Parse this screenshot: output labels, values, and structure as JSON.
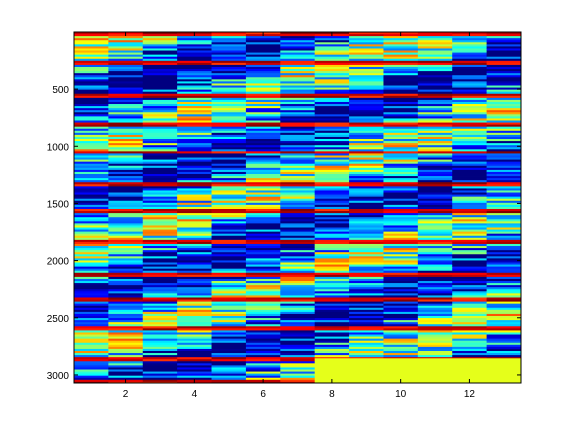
{
  "chart_data": {
    "type": "heatmap",
    "title": "",
    "xlabel": "",
    "ylabel": "",
    "colormap": "jet",
    "columns": 13,
    "rows": 3070,
    "x_range": [
      0.5,
      13.5
    ],
    "y_range": [
      0.5,
      3070.5
    ],
    "y_direction": "reversed",
    "x_ticks": [
      2,
      4,
      6,
      8,
      10,
      12
    ],
    "y_ticks": [
      500,
      1000,
      1500,
      2000,
      2500,
      3000
    ],
    "x_tick_labels": [
      "2",
      "4",
      "6",
      "8",
      "10",
      "12"
    ],
    "y_tick_labels": [
      "500",
      "1000",
      "1500",
      "2000",
      "2500",
      "3000"
    ],
    "padded_region": {
      "first_column": 8,
      "last_column": 13,
      "start_row": 2855,
      "value": 0.6
    },
    "data_note_row_bands": "values are normalized 0-1 and drawn as horizontal stripes per column",
    "grid": false
  }
}
